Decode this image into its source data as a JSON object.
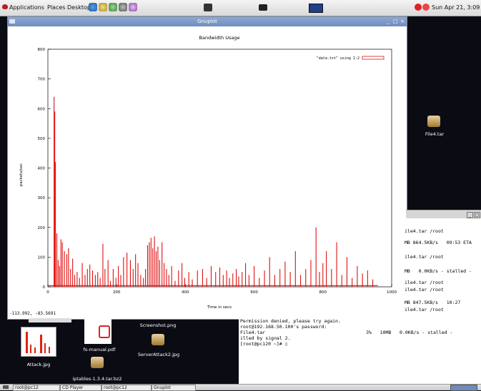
{
  "top_panel": {
    "menu_applications": "Applications",
    "menu_places": "Places",
    "menu_desktop": "Desktop",
    "clock": "Sun Apr 21,  3:09 PM"
  },
  "gnuplot_window": {
    "title": "Gnuplot",
    "coords": "-113.992,  -83.5691"
  },
  "chart_data": {
    "type": "line",
    "title": "Bandwidth Usage",
    "xlabel": "Time in secs",
    "ylabel": "packets/sec",
    "legend": "\"data.txt\" using 1:2",
    "legend_position": "top-right",
    "xlim": [
      0,
      1000
    ],
    "ylim": [
      0,
      800
    ],
    "xticks": [
      "0",
      "200",
      "400",
      "600",
      "800",
      "1000"
    ],
    "yticks": [
      "0",
      "100",
      "200",
      "300",
      "400",
      "500",
      "600",
      "700",
      "800"
    ],
    "grid": false,
    "series_color": "#e01010",
    "spikes": [
      [
        18,
        640
      ],
      [
        20,
        590
      ],
      [
        22,
        420
      ],
      [
        26,
        180
      ],
      [
        30,
        90
      ],
      [
        34,
        70
      ],
      [
        38,
        160
      ],
      [
        42,
        150
      ],
      [
        48,
        120
      ],
      [
        55,
        110
      ],
      [
        60,
        130
      ],
      [
        66,
        60
      ],
      [
        72,
        95
      ],
      [
        78,
        40
      ],
      [
        85,
        50
      ],
      [
        92,
        30
      ],
      [
        100,
        80
      ],
      [
        108,
        40
      ],
      [
        115,
        60
      ],
      [
        122,
        75
      ],
      [
        130,
        55
      ],
      [
        138,
        40
      ],
      [
        145,
        50
      ],
      [
        152,
        30
      ],
      [
        160,
        145
      ],
      [
        166,
        60
      ],
      [
        175,
        90
      ],
      [
        182,
        20
      ],
      [
        190,
        60
      ],
      [
        198,
        30
      ],
      [
        205,
        70
      ],
      [
        212,
        40
      ],
      [
        220,
        100
      ],
      [
        230,
        115
      ],
      [
        240,
        90
      ],
      [
        248,
        60
      ],
      [
        255,
        110
      ],
      [
        262,
        80
      ],
      [
        270,
        40
      ],
      [
        278,
        30
      ],
      [
        284,
        60
      ],
      [
        290,
        140
      ],
      [
        295,
        150
      ],
      [
        300,
        165
      ],
      [
        305,
        130
      ],
      [
        310,
        170
      ],
      [
        315,
        120
      ],
      [
        320,
        135
      ],
      [
        325,
        90
      ],
      [
        332,
        150
      ],
      [
        338,
        80
      ],
      [
        345,
        60
      ],
      [
        352,
        40
      ],
      [
        360,
        70
      ],
      [
        370,
        20
      ],
      [
        380,
        55
      ],
      [
        390,
        80
      ],
      [
        398,
        30
      ],
      [
        410,
        50
      ],
      [
        420,
        25
      ],
      [
        435,
        55
      ],
      [
        450,
        60
      ],
      [
        462,
        30
      ],
      [
        475,
        70
      ],
      [
        488,
        50
      ],
      [
        500,
        65
      ],
      [
        510,
        40
      ],
      [
        520,
        55
      ],
      [
        528,
        30
      ],
      [
        538,
        45
      ],
      [
        548,
        60
      ],
      [
        555,
        35
      ],
      [
        565,
        50
      ],
      [
        575,
        80
      ],
      [
        585,
        40
      ],
      [
        600,
        70
      ],
      [
        615,
        30
      ],
      [
        630,
        55
      ],
      [
        645,
        100
      ],
      [
        660,
        40
      ],
      [
        675,
        60
      ],
      [
        690,
        85
      ],
      [
        705,
        50
      ],
      [
        720,
        120
      ],
      [
        735,
        40
      ],
      [
        750,
        60
      ],
      [
        765,
        90
      ],
      [
        780,
        200
      ],
      [
        790,
        50
      ],
      [
        800,
        80
      ],
      [
        810,
        120
      ],
      [
        825,
        60
      ],
      [
        840,
        150
      ],
      [
        855,
        40
      ],
      [
        870,
        100
      ],
      [
        885,
        30
      ],
      [
        900,
        70
      ],
      [
        915,
        45
      ],
      [
        930,
        55
      ],
      [
        945,
        25
      ]
    ]
  },
  "terminal": {
    "right_lines": [
      "ile4.tar /root",
      "MB 864.5KB/s   09:53 ETA",
      "ile4.tar /root",
      "MB   0.0KB/s - stalled -",
      "ile4.tar /root",
      "ile4.tar /root",
      "MB 847.5KB/s   10:27",
      "ile4.tar /root"
    ],
    "bottom_lines": [
      "Permission denied, please try again.",
      "root@192.168.50.100's password:",
      "File4.tar                                    3%   10MB   0.0KB/s - stalled -",
      "illed by signal 2.",
      "[root@pc120 ~]# ▯"
    ]
  },
  "desktop": {
    "file4": "File4.tar",
    "attack": "Attack.jpg",
    "fsmanual": "fs-manual.pdf",
    "screenshot": "Screenshot.png",
    "serverattack": "ServerAttack2.jpg",
    "iptables": "iptables-1.3.4.tar.bz2"
  },
  "taskbar": {
    "items": [
      "root@pc12",
      "CD Player",
      "root@pc12",
      "Gnuplot"
    ]
  }
}
